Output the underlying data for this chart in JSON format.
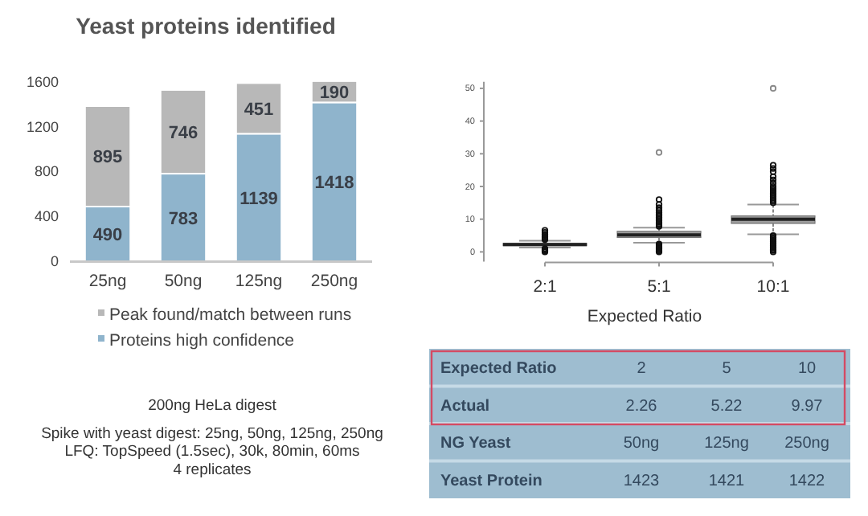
{
  "chart_data": [
    {
      "type": "bar",
      "title": "Yeast proteins identified",
      "categories": [
        "25ng",
        "50ng",
        "125ng",
        "250ng"
      ],
      "stacked": true,
      "series": [
        {
          "name": "Proteins high confidence",
          "color": "#8fb4cc",
          "values": [
            490,
            783,
            1139,
            1418
          ]
        },
        {
          "name": "Peak found/match between runs",
          "color": "#b8b8b8",
          "values": [
            895,
            746,
            451,
            190
          ]
        }
      ],
      "ylim": [
        0,
        1620
      ],
      "yticks": [
        0,
        400,
        800,
        1200,
        1600
      ],
      "data_labels": true,
      "legend": "bottom",
      "annotations": [
        "200ng HeLa digest",
        "Spike with yeast digest: 25ng, 50ng, 125ng, 250ng",
        "LFQ: TopSpeed (1.5sec), 30k, 80min, 60ms",
        "4 replicates"
      ]
    },
    {
      "type": "box",
      "categories": [
        "2:1",
        "5:1",
        "10:1"
      ],
      "xlabel": "Expected Ratio",
      "color": "#9e9e9e",
      "ylim": [
        -3,
        52
      ],
      "yticks": [
        0,
        10,
        20,
        30,
        40,
        50
      ],
      "boxes": [
        {
          "low": 1.3,
          "q1": 1.9,
          "median": 2.26,
          "q3": 2.6,
          "high": 3.4,
          "outliers": [
            0,
            0.2,
            0.4,
            0.6,
            0.8,
            1.0,
            3.7,
            4.0,
            4.3,
            4.6,
            5.0,
            5.4,
            6.0,
            6.6
          ]
        },
        {
          "low": 2.8,
          "q1": 4.4,
          "median": 5.22,
          "q3": 6.3,
          "high": 7.4,
          "outliers": [
            0,
            0.3,
            0.6,
            0.9,
            1.2,
            1.5,
            1.8,
            2.1,
            2.4,
            7.8,
            8.2,
            8.6,
            9.0,
            9.5,
            10,
            10.5,
            11,
            11.5,
            12,
            12.7,
            13.5,
            14.5,
            16,
            30.4
          ]
        },
        {
          "low": 5.4,
          "q1": 8.7,
          "median": 9.97,
          "q3": 11,
          "high": 14.5,
          "outliers": [
            0,
            0.4,
            0.8,
            1.2,
            1.6,
            2.0,
            2.4,
            2.8,
            3.2,
            3.6,
            4.0,
            4.4,
            4.8,
            5.0,
            15,
            15.5,
            16,
            16.5,
            17,
            17.5,
            18,
            18.5,
            19,
            19.5,
            20,
            21,
            22,
            23,
            24.5,
            25.5,
            26.5,
            50
          ]
        }
      ]
    },
    {
      "type": "other",
      "y_categories": [
        "Expected Ratio",
        "Actual",
        "NG Yeast",
        "Yeast Protein"
      ],
      "cell_labels": [
        [
          "2",
          "5",
          "10"
        ],
        [
          "2.26",
          "5.22",
          "9.97"
        ],
        [
          "50ng",
          "125ng",
          "250ng"
        ],
        [
          "1423",
          "1421",
          "1422"
        ]
      ]
    }
  ]
}
